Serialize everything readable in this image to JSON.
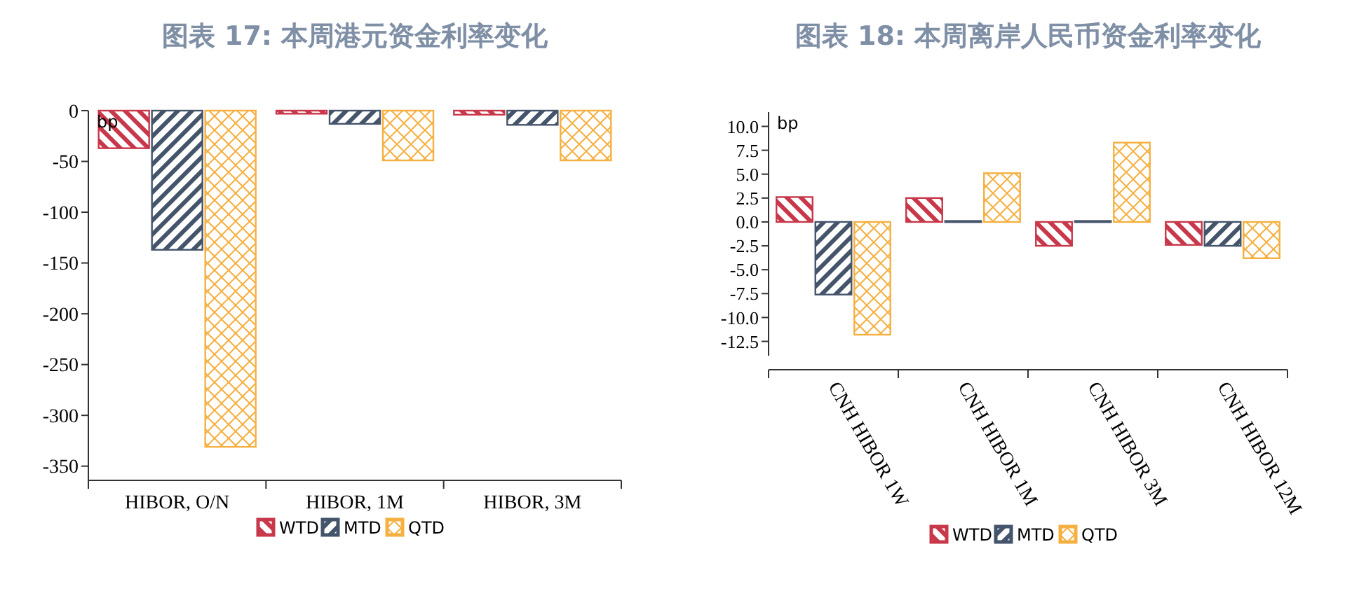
{
  "chart_data": [
    {
      "type": "bar",
      "title": "图表 17: 本周港元资金利率变化",
      "ylabel": "bp",
      "categories": [
        "HIBOR, O/N",
        "HIBOR, 1M",
        "HIBOR, 3M"
      ],
      "series": [
        {
          "name": "WTD",
          "color": "#c8374a",
          "values": [
            -37,
            -3,
            -4
          ]
        },
        {
          "name": "MTD",
          "color": "#44546a",
          "values": [
            -137,
            -13,
            -14
          ]
        },
        {
          "name": "QTD",
          "color": "#f5b041",
          "values": [
            -331,
            -49,
            -49
          ]
        }
      ],
      "ylim": [
        -364,
        0
      ],
      "yticks": [
        -350,
        -300,
        -250,
        -200,
        -150,
        -100,
        -50,
        0
      ],
      "legend": "bottom",
      "grid": false
    },
    {
      "type": "bar",
      "title": "图表 18: 本周离岸人民币资金利率变化",
      "ylabel": "bp",
      "categories": [
        "CNH HIBOR 1W",
        "CNH HIBOR 1M",
        "CNH HIBOR 3M",
        "CNH HIBOR 12M"
      ],
      "series": [
        {
          "name": "WTD",
          "color": "#c8374a",
          "values": [
            2.6,
            2.5,
            -2.5,
            -2.4
          ]
        },
        {
          "name": "MTD",
          "color": "#44546a",
          "values": [
            -7.6,
            0.1,
            0.1,
            -2.5
          ]
        },
        {
          "name": "QTD",
          "color": "#f5b041",
          "values": [
            -11.8,
            5.1,
            8.3,
            -3.8
          ]
        }
      ],
      "ylim": [
        -14,
        11.5
      ],
      "yticks": [
        {
          "value": -12.5,
          "label": "-12.5"
        },
        {
          "value": -10,
          "label": "-10.0"
        },
        {
          "value": -7.5,
          "label": "-7.5"
        },
        {
          "value": -5,
          "label": "-5.0"
        },
        {
          "value": -2.5,
          "label": "-2.5"
        },
        {
          "value": 0,
          "label": "0.0"
        },
        {
          "value": 2.5,
          "label": "2.5"
        },
        {
          "value": 5,
          "label": "5.0"
        },
        {
          "value": 7.5,
          "label": "7.5"
        },
        {
          "value": 10,
          "label": "10.0"
        }
      ],
      "legend": "bottom",
      "grid": false
    }
  ]
}
